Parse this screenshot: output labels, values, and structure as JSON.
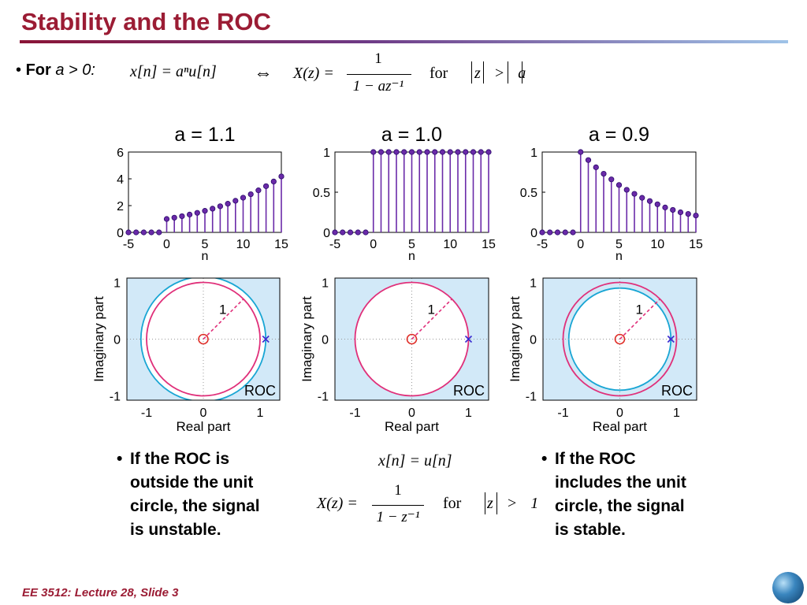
{
  "slide": {
    "title": "Stability and the ROC",
    "footer": "EE 3512: Lecture 28, Slide 3"
  },
  "bullet": {
    "lead": "For",
    "condition": "a > 0:",
    "xn": "x[n] = aⁿu[n]",
    "iff": "⇔",
    "xz_lhs": "X(z) =",
    "num": "1",
    "den": "1 − az⁻¹",
    "for": "for",
    "roc": "z > a"
  },
  "stem_plots": [
    {
      "title": "a = 1.1",
      "yticks": [
        "6",
        "4",
        "2",
        "0"
      ],
      "xticks": [
        "-5",
        "0",
        "5",
        "10",
        "15"
      ],
      "xlabel": "n"
    },
    {
      "title": "a = 1.0",
      "yticks": [
        "1",
        "0.5",
        "0"
      ],
      "xticks": [
        "-5",
        "0",
        "5",
        "10",
        "15"
      ],
      "xlabel": "n"
    },
    {
      "title": "a = 0.9",
      "yticks": [
        "1",
        "0.5",
        "0"
      ],
      "xticks": [
        "-5",
        "0",
        "5",
        "10",
        "15"
      ],
      "xlabel": "n"
    }
  ],
  "pz_plots": [
    {
      "ylabel": "Imaginary part",
      "xlabel": "Real part",
      "roc_label": "ROC",
      "radius_label": "1",
      "yticks": [
        "1",
        "0",
        "-1"
      ],
      "xticks": [
        "-1",
        "0",
        "1"
      ],
      "pole": 1.1
    },
    {
      "ylabel": "Imaginary part",
      "xlabel": "Real part",
      "roc_label": "ROC",
      "radius_label": "1",
      "yticks": [
        "1",
        "0",
        "-1"
      ],
      "xticks": [
        "-1",
        "0",
        "1"
      ],
      "pole": 1.0
    },
    {
      "ylabel": "Imaginary part",
      "xlabel": "Real part",
      "roc_label": "ROC",
      "radius_label": "1",
      "yticks": [
        "1",
        "0",
        "-1"
      ],
      "xticks": [
        "-1",
        "0",
        "1"
      ],
      "pole": 0.9
    }
  ],
  "notes": {
    "left": [
      "If the ROC is",
      "outside the unit",
      "circle, the signal",
      "is unstable."
    ],
    "right": [
      "If the ROC",
      "includes the unit",
      "circle, the signal",
      "is stable."
    ]
  },
  "middle_math": {
    "xn": "x[n] = u[n]",
    "xz_lhs": "X(z) =",
    "num": "1",
    "den": "1 − z⁻¹",
    "for": "for",
    "roc": "z > 1"
  },
  "chart_data": [
    {
      "type": "scatter",
      "title": "a = 1.1",
      "xlabel": "n",
      "ylabel": "",
      "xlim": [
        -5,
        15
      ],
      "ylim": [
        0,
        6
      ],
      "x": [
        -5,
        -4,
        -3,
        -2,
        -1,
        0,
        1,
        2,
        3,
        4,
        5,
        6,
        7,
        8,
        9,
        10,
        11,
        12,
        13,
        14,
        15
      ],
      "values": [
        0,
        0,
        0,
        0,
        0,
        1,
        1.1,
        1.21,
        1.33,
        1.46,
        1.61,
        1.77,
        1.95,
        2.14,
        2.36,
        2.59,
        2.85,
        3.14,
        3.45,
        3.8,
        4.18
      ]
    },
    {
      "type": "scatter",
      "title": "a = 1.0",
      "xlabel": "n",
      "ylabel": "",
      "xlim": [
        -5,
        15
      ],
      "ylim": [
        0,
        1
      ],
      "x": [
        -5,
        -4,
        -3,
        -2,
        -1,
        0,
        1,
        2,
        3,
        4,
        5,
        6,
        7,
        8,
        9,
        10,
        11,
        12,
        13,
        14,
        15
      ],
      "values": [
        0,
        0,
        0,
        0,
        0,
        1,
        1,
        1,
        1,
        1,
        1,
        1,
        1,
        1,
        1,
        1,
        1,
        1,
        1,
        1,
        1
      ]
    },
    {
      "type": "scatter",
      "title": "a = 0.9",
      "xlabel": "n",
      "ylabel": "",
      "xlim": [
        -5,
        15
      ],
      "ylim": [
        0,
        1
      ],
      "x": [
        -5,
        -4,
        -3,
        -2,
        -1,
        0,
        1,
        2,
        3,
        4,
        5,
        6,
        7,
        8,
        9,
        10,
        11,
        12,
        13,
        14,
        15
      ],
      "values": [
        0,
        0,
        0,
        0,
        0,
        1,
        0.9,
        0.81,
        0.73,
        0.66,
        0.59,
        0.53,
        0.48,
        0.43,
        0.39,
        0.35,
        0.31,
        0.28,
        0.25,
        0.23,
        0.21
      ]
    }
  ],
  "colors": {
    "title": "#9b1c34",
    "stem": "#6a2aa8",
    "unit_circle": "#e0307a",
    "roc_circle": "#19a6d4",
    "roc_fill": "#d2e9f8",
    "pole": "#3a2ad0",
    "zero": "#e0302a"
  }
}
